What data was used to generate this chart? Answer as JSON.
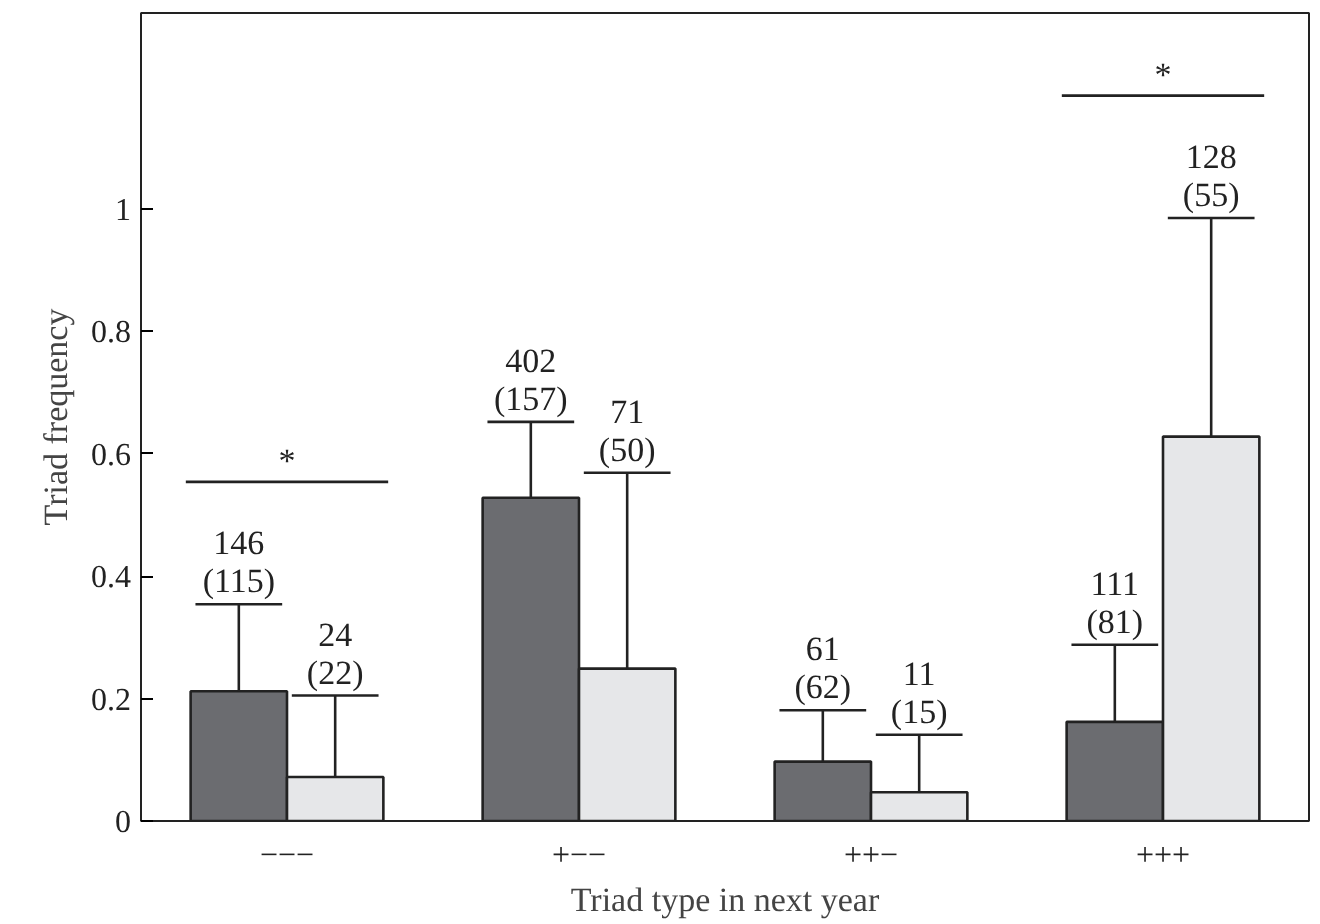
{
  "chart_data": {
    "type": "bar",
    "xlabel": "Triad type in next year",
    "ylabel": "Triad frequency",
    "categories": [
      "−−−",
      "+−−",
      "++−",
      "+++"
    ],
    "series": [
      {
        "color": "#6b6c70",
        "values": [
          0.212,
          0.528,
          0.097,
          0.162
        ],
        "errors": [
          [
            0.212,
            0.354
          ],
          [
            0.528,
            0.652
          ],
          [
            0.097,
            0.181
          ],
          [
            0.162,
            0.288
          ]
        ]
      },
      {
        "color": "#e6e7e9",
        "values": [
          0.072,
          0.249,
          0.047,
          0.628
        ],
        "errors": [
          [
            0.072,
            0.205
          ],
          [
            0.249,
            0.569
          ],
          [
            0.047,
            0.141
          ],
          [
            0.628,
            0.985
          ]
        ]
      }
    ],
    "annotations": [
      "146\n(115)",
      "402\n(157)",
      "61\n(62)",
      "111\n(81)",
      "24\n(22)",
      "71\n(50)",
      "11\n(15)",
      "128\n(55)",
      "*",
      null,
      null,
      "*"
    ],
    "ylim": [
      0,
      1.32
    ],
    "yticks": [
      0,
      {
        "value": 0.2,
        "label": "0.2"
      },
      {
        "value": 0.4,
        "label": "0.4"
      },
      {
        "value": 0.6,
        "label": "0.6"
      },
      {
        "value": 0.8,
        "label": "0.8"
      },
      1
    ],
    "grid": false
  }
}
